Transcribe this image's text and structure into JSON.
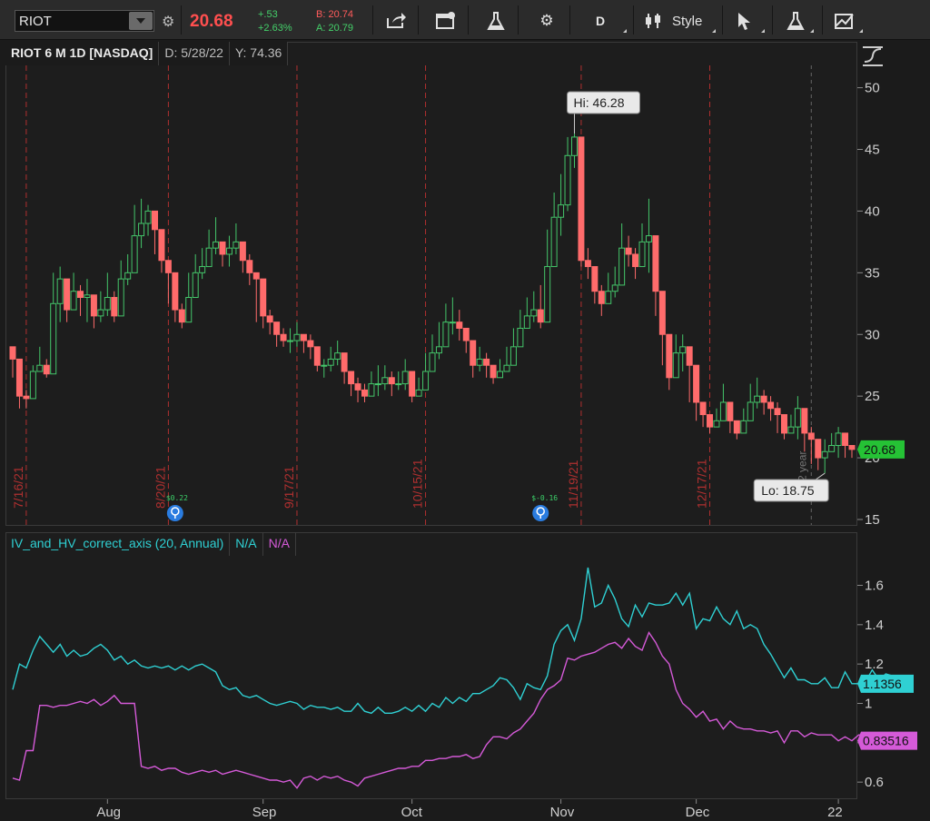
{
  "toolbar": {
    "symbol": "RIOT",
    "last_price": "20.68",
    "change_abs": "+.53",
    "change_pct": "+2.63%",
    "bid": "B: 20.74",
    "ask": "A: 20.79",
    "aggregation": "D",
    "style_label": "Style",
    "icons": [
      "link-icon",
      "share-icon",
      "notification-icon",
      "studies-flask-icon",
      "settings-gear-icon",
      "aggregation-icon",
      "chart-style-icon",
      "cursor-icon",
      "studies-flask-icon-2",
      "drawing-icon"
    ]
  },
  "price_panel": {
    "title": "RIOT 6 M 1D [NASDAQ]",
    "date_readout": "D: 5/28/22",
    "y_readout": "Y: 74.36",
    "hi_label": "Hi: 46.28",
    "lo_label": "Lo: 18.75",
    "last_price_tag": "20.68",
    "year_marker": "2022 year",
    "expiry_dates": [
      "7/16/21",
      "8/20/21",
      "9/17/21",
      "10/15/21",
      "11/19/21",
      "12/17/21"
    ],
    "earnings": [
      {
        "value": "$0.22"
      },
      {
        "value": "$-0.16"
      }
    ],
    "colors": {
      "up": "#44c66a",
      "down": "#ff6b6b",
      "expiry_line": "#b03030",
      "price_tag": "#25c235"
    }
  },
  "study_panel": {
    "title": "IV_and_HV_correct_axis (20, Annual)",
    "iv_readout": "N/A",
    "hv_readout": "N/A",
    "iv_tag": "1.1356",
    "hv_tag": "0.83516",
    "colors": {
      "iv": "#2fd0d3",
      "hv": "#d55ad8"
    }
  },
  "chart_data": [
    {
      "type": "candlestick",
      "title": "RIOT 6 M 1D [NASDAQ]",
      "ylim": [
        15,
        51
      ],
      "y_ticks": [
        15,
        20,
        25,
        30,
        35,
        40,
        45,
        50
      ],
      "x_ticks": [
        "Aug",
        "Sep",
        "Oct",
        "Nov",
        "Dec",
        "22"
      ],
      "series": [
        {
          "name": "close",
          "values": [
            28.0,
            25.0,
            24.8,
            27.0,
            27.5,
            26.8,
            32.5,
            34.5,
            32.0,
            33.5,
            33.0,
            33.2,
            31.5,
            32.0,
            33.0,
            31.5,
            34.5,
            35.0,
            38.0,
            39.0,
            40.0,
            38.5,
            36.0,
            35.0,
            32.0,
            31.0,
            33.0,
            35.0,
            35.5,
            37.0,
            37.5,
            36.5,
            37.0,
            37.5,
            36.0,
            35.0,
            34.5,
            31.5,
            31.0,
            30.0,
            29.5,
            29.5,
            30.0,
            29.5,
            29.0,
            27.5,
            27.5,
            28.0,
            28.5,
            27.0,
            26.0,
            25.5,
            25.0,
            26.0,
            26.0,
            26.5,
            26.0,
            26.0,
            27.0,
            25.0,
            25.5,
            27.0,
            28.5,
            29.0,
            31.0,
            31.0,
            30.5,
            29.5,
            27.5,
            28.0,
            27.5,
            26.5,
            27.0,
            27.5,
            29.0,
            30.5,
            31.5,
            32.0,
            31.0,
            35.5,
            39.5,
            40.5,
            44.5,
            46.0,
            36.0,
            35.5,
            33.5,
            32.5,
            33.5,
            34.0,
            37.0,
            36.5,
            35.5,
            37.5,
            38.0,
            33.5,
            30.0,
            26.5,
            28.5,
            29.0,
            27.5,
            24.5,
            23.5,
            22.5,
            23.0,
            24.5,
            23.0,
            22.0,
            23.0,
            24.5,
            25.0,
            24.5,
            24.0,
            23.5,
            22.0,
            22.5,
            24.0,
            22.0,
            21.5,
            20.0,
            20.5,
            21.0,
            22.0,
            21.0,
            20.68
          ]
        },
        {
          "name": "high",
          "values": [
            29.0,
            26.5,
            25.5,
            27.5,
            29.0,
            28.0,
            35.0,
            35.5,
            33.5,
            35.0,
            34.0,
            34.5,
            33.0,
            33.5,
            35.0,
            33.5,
            36.0,
            36.5,
            40.5,
            41.0,
            40.5,
            39.0,
            37.5,
            36.0,
            33.0,
            32.5,
            35.0,
            36.5,
            37.0,
            38.5,
            39.5,
            37.5,
            38.0,
            39.0,
            37.5,
            36.5,
            35.0,
            32.5,
            32.0,
            31.0,
            30.5,
            30.5,
            31.0,
            30.0,
            30.0,
            28.5,
            28.0,
            29.0,
            29.5,
            28.0,
            27.0,
            26.5,
            26.0,
            27.0,
            27.5,
            27.5,
            27.0,
            27.0,
            28.0,
            26.0,
            26.5,
            28.5,
            30.0,
            31.0,
            32.5,
            33.0,
            32.0,
            30.5,
            28.5,
            29.0,
            28.5,
            27.5,
            28.0,
            29.0,
            30.5,
            32.0,
            33.0,
            33.5,
            34.0,
            38.5,
            41.5,
            43.0,
            46.0,
            46.28,
            38.0,
            37.0,
            35.0,
            34.0,
            35.0,
            35.5,
            39.0,
            38.0,
            37.0,
            39.0,
            41.0,
            35.5,
            31.0,
            28.0,
            30.0,
            30.0,
            28.5,
            26.0,
            24.5,
            23.5,
            24.0,
            26.0,
            24.0,
            23.0,
            24.0,
            26.0,
            26.5,
            25.5,
            25.0,
            24.5,
            23.5,
            23.5,
            25.0,
            23.0,
            22.5,
            21.0,
            21.5,
            22.0,
            22.5,
            21.5,
            21.0
          ]
        },
        {
          "name": "low",
          "values": [
            26.5,
            24.0,
            24.0,
            25.5,
            27.0,
            26.5,
            29.5,
            31.0,
            31.0,
            32.0,
            31.5,
            31.0,
            30.5,
            31.0,
            31.5,
            31.0,
            33.0,
            34.0,
            36.0,
            37.0,
            38.0,
            36.5,
            35.0,
            32.5,
            31.0,
            30.5,
            31.5,
            34.0,
            34.5,
            36.0,
            36.5,
            35.5,
            35.5,
            36.5,
            35.0,
            34.0,
            31.0,
            30.5,
            30.0,
            29.0,
            29.0,
            28.5,
            29.0,
            28.5,
            28.0,
            27.0,
            26.5,
            27.0,
            27.5,
            26.0,
            25.0,
            24.5,
            24.5,
            25.0,
            25.0,
            25.5,
            25.0,
            25.5,
            25.5,
            24.5,
            25.0,
            25.5,
            27.0,
            28.0,
            29.0,
            30.0,
            29.5,
            28.5,
            26.5,
            27.0,
            26.5,
            26.0,
            26.5,
            27.0,
            27.5,
            29.0,
            30.5,
            31.0,
            30.5,
            31.5,
            35.5,
            38.0,
            40.0,
            43.5,
            35.5,
            34.5,
            32.5,
            31.5,
            32.5,
            33.0,
            34.0,
            35.5,
            34.5,
            36.0,
            35.0,
            31.5,
            27.5,
            25.5,
            26.5,
            27.0,
            24.5,
            23.0,
            22.5,
            22.0,
            22.5,
            23.0,
            22.0,
            21.5,
            22.5,
            23.0,
            24.0,
            23.5,
            23.0,
            22.0,
            21.5,
            22.0,
            21.5,
            20.5,
            19.5,
            19.0,
            18.75,
            20.5,
            20.0,
            20.0,
            20.0
          ]
        }
      ]
    },
    {
      "type": "line",
      "title": "IV_and_HV_correct_axis (20, Annual)",
      "ylim": [
        0.55,
        1.75
      ],
      "y_ticks": [
        0.6,
        0.8,
        1,
        1.2,
        1.4,
        1.6
      ],
      "series": [
        {
          "name": "IV",
          "values": [
            1.07,
            1.2,
            1.18,
            1.27,
            1.34,
            1.3,
            1.26,
            1.3,
            1.24,
            1.27,
            1.24,
            1.25,
            1.28,
            1.3,
            1.27,
            1.22,
            1.24,
            1.2,
            1.22,
            1.19,
            1.18,
            1.19,
            1.18,
            1.19,
            1.17,
            1.19,
            1.17,
            1.19,
            1.2,
            1.18,
            1.16,
            1.09,
            1.07,
            1.08,
            1.04,
            1.03,
            1.04,
            1.02,
            1.0,
            0.99,
            1.0,
            1.01,
            1.0,
            0.97,
            0.99,
            0.98,
            0.98,
            0.97,
            0.98,
            0.96,
            0.96,
            1.0,
            0.96,
            0.95,
            0.98,
            0.95,
            0.95,
            0.96,
            0.98,
            0.96,
            0.99,
            0.96,
            1.0,
            0.98,
            1.03,
            1.0,
            1.03,
            1.01,
            1.05,
            1.05,
            1.07,
            1.09,
            1.13,
            1.12,
            1.08,
            1.02,
            1.1,
            1.08,
            1.07,
            1.14,
            1.3,
            1.37,
            1.4,
            1.32,
            1.43,
            1.69,
            1.49,
            1.51,
            1.6,
            1.53,
            1.43,
            1.39,
            1.5,
            1.44,
            1.51,
            1.5,
            1.5,
            1.51,
            1.56,
            1.5,
            1.56,
            1.38,
            1.43,
            1.42,
            1.49,
            1.43,
            1.4,
            1.47,
            1.38,
            1.4,
            1.38,
            1.3,
            1.25,
            1.19,
            1.13,
            1.18,
            1.12,
            1.12,
            1.1,
            1.1,
            1.13,
            1.08,
            1.08,
            1.16,
            1.1,
            1.1,
            1.11,
            1.17,
            1.12,
            1.15,
            1.14,
            1.13
          ]
        },
        {
          "name": "HV",
          "values": [
            0.62,
            0.61,
            0.76,
            0.76,
            0.99,
            0.99,
            0.98,
            0.99,
            0.99,
            1.0,
            1.01,
            1.0,
            1.02,
            0.99,
            1.01,
            1.04,
            1.0,
            1.0,
            1.0,
            0.68,
            0.67,
            0.68,
            0.66,
            0.67,
            0.67,
            0.65,
            0.64,
            0.65,
            0.66,
            0.65,
            0.66,
            0.64,
            0.65,
            0.66,
            0.65,
            0.64,
            0.63,
            0.62,
            0.61,
            0.61,
            0.6,
            0.61,
            0.57,
            0.62,
            0.63,
            0.61,
            0.63,
            0.62,
            0.63,
            0.61,
            0.6,
            0.58,
            0.62,
            0.63,
            0.64,
            0.65,
            0.66,
            0.67,
            0.67,
            0.68,
            0.68,
            0.71,
            0.71,
            0.72,
            0.72,
            0.73,
            0.73,
            0.74,
            0.72,
            0.73,
            0.79,
            0.83,
            0.83,
            0.82,
            0.85,
            0.87,
            0.91,
            0.95,
            1.02,
            1.07,
            1.09,
            1.12,
            1.23,
            1.22,
            1.24,
            1.25,
            1.26,
            1.28,
            1.3,
            1.31,
            1.28,
            1.33,
            1.29,
            1.27,
            1.36,
            1.31,
            1.24,
            1.2,
            1.07,
            1.0,
            0.97,
            0.93,
            0.96,
            0.91,
            0.92,
            0.87,
            0.91,
            0.88,
            0.87,
            0.87,
            0.86,
            0.86,
            0.85,
            0.86,
            0.8,
            0.86,
            0.86,
            0.83,
            0.85,
            0.84,
            0.84,
            0.84,
            0.81,
            0.83,
            0.81,
            0.84,
            0.84,
            0.8
          ]
        }
      ]
    }
  ]
}
